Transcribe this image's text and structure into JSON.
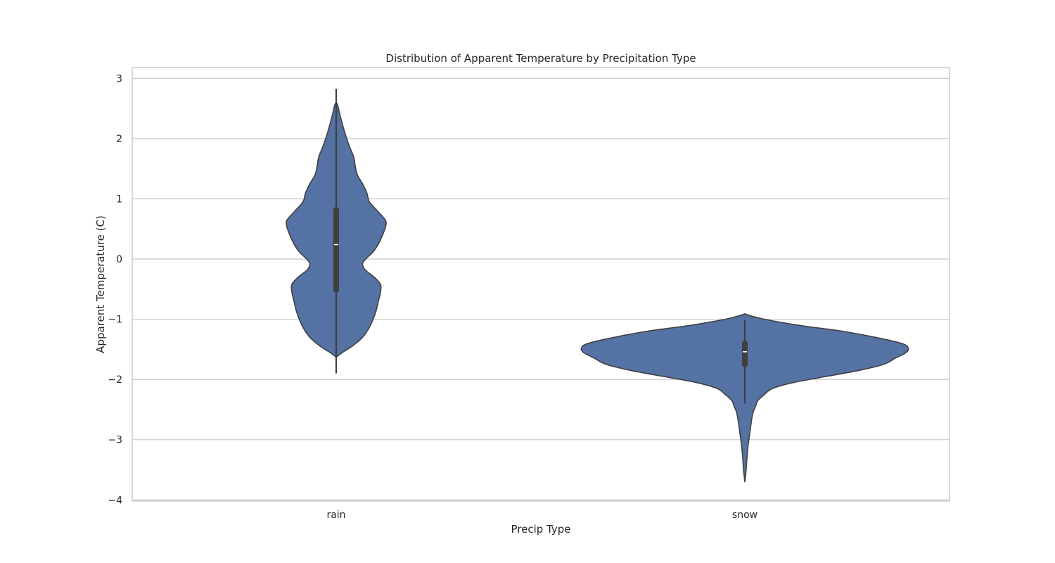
{
  "chart_data": {
    "type": "violin",
    "title": "Distribution of Apparent Temperature by Precipitation Type",
    "xlabel": "Precip Type",
    "ylabel": "Apparent Temperature (C)",
    "ylim": [
      -4.02,
      3.18
    ],
    "yticks": [
      3,
      2,
      1,
      0,
      -1,
      -2,
      -3,
      -4
    ],
    "ytick_labels": [
      "3",
      "2",
      "1",
      "0",
      "−1",
      "−2",
      "−3",
      "−4"
    ],
    "grid": "horizontal",
    "colors": {
      "fill": "#5572a5",
      "edge": "#3f3f3f",
      "box": "#3f3f3f",
      "median": "#ffffff",
      "grid": "#cccccc",
      "frame": "#cccccc"
    },
    "categories": [
      "rain",
      "snow"
    ],
    "violins": [
      {
        "category": "rain",
        "min": -1.9,
        "q1": -0.55,
        "median": 0.24,
        "q3": 0.86,
        "max": 2.83,
        "whisker_low": -1.9,
        "whisker_high": 2.83,
        "density_profile": [
          [
            -1.63,
            0.0
          ],
          [
            -1.55,
            0.12
          ],
          [
            -1.45,
            0.3
          ],
          [
            -1.3,
            0.5
          ],
          [
            -1.15,
            0.62
          ],
          [
            -1.0,
            0.7
          ],
          [
            -0.85,
            0.76
          ],
          [
            -0.7,
            0.8
          ],
          [
            -0.55,
            0.84
          ],
          [
            -0.42,
            0.84
          ],
          [
            -0.3,
            0.72
          ],
          [
            -0.18,
            0.55
          ],
          [
            -0.08,
            0.5
          ],
          [
            0.0,
            0.56
          ],
          [
            0.12,
            0.7
          ],
          [
            0.25,
            0.8
          ],
          [
            0.4,
            0.88
          ],
          [
            0.55,
            0.94
          ],
          [
            0.65,
            0.93
          ],
          [
            0.8,
            0.78
          ],
          [
            0.95,
            0.63
          ],
          [
            1.1,
            0.58
          ],
          [
            1.25,
            0.5
          ],
          [
            1.4,
            0.4
          ],
          [
            1.55,
            0.36
          ],
          [
            1.7,
            0.33
          ],
          [
            1.85,
            0.26
          ],
          [
            2.0,
            0.2
          ],
          [
            2.2,
            0.13
          ],
          [
            2.4,
            0.07
          ],
          [
            2.55,
            0.03
          ],
          [
            2.6,
            0.0
          ]
        ]
      },
      {
        "category": "snow",
        "min": -3.7,
        "q1": -1.79,
        "median": -1.54,
        "q3": -1.36,
        "max": -1.01,
        "whisker_low": -2.4,
        "whisker_high": -1.01,
        "density_profile": [
          [
            -3.7,
            0.0
          ],
          [
            -3.5,
            0.008
          ],
          [
            -3.3,
            0.013
          ],
          [
            -3.1,
            0.02
          ],
          [
            -2.9,
            0.03
          ],
          [
            -2.7,
            0.04
          ],
          [
            -2.55,
            0.05
          ],
          [
            -2.45,
            0.065
          ],
          [
            -2.35,
            0.08
          ],
          [
            -2.25,
            0.12
          ],
          [
            -2.15,
            0.17
          ],
          [
            -2.05,
            0.3
          ],
          [
            -1.95,
            0.5
          ],
          [
            -1.85,
            0.7
          ],
          [
            -1.75,
            0.85
          ],
          [
            -1.65,
            0.92
          ],
          [
            -1.55,
            0.99
          ],
          [
            -1.47,
            1.0
          ],
          [
            -1.4,
            0.96
          ],
          [
            -1.3,
            0.8
          ],
          [
            -1.2,
            0.6
          ],
          [
            -1.1,
            0.33
          ],
          [
            -1.0,
            0.12
          ],
          [
            -0.93,
            0.02
          ],
          [
            -0.91,
            0.0
          ]
        ]
      }
    ]
  }
}
